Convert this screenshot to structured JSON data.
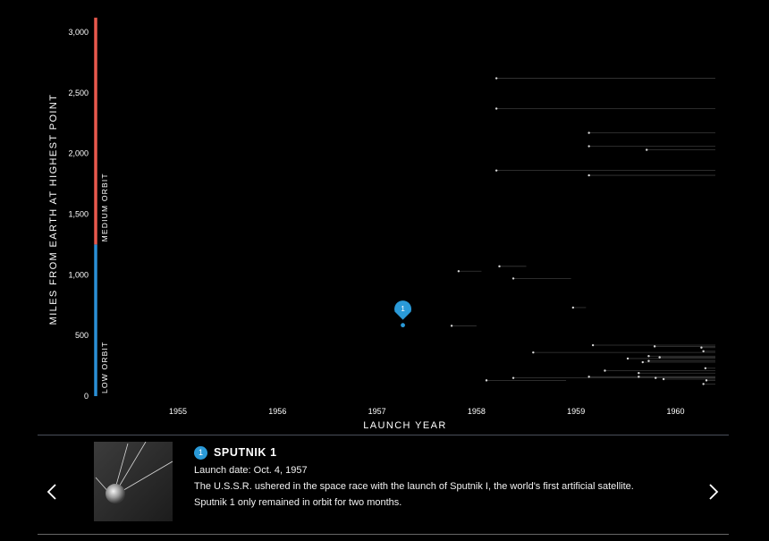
{
  "chart_data": {
    "type": "scatter",
    "xlabel": "LAUNCH YEAR",
    "ylabel": "MILES FROM EARTH AT HIGHEST POINT",
    "x_ticks": [
      "1955",
      "1956",
      "1957",
      "1958",
      "1959",
      "1960"
    ],
    "y_ticks": [
      "0",
      "500",
      "1,000",
      "1,500",
      "2,000",
      "2,500",
      "3,000"
    ],
    "xlim": [
      1954.2,
      1960.4
    ],
    "ylim": [
      0,
      3000
    ],
    "bands": [
      {
        "label": "LOW ORBIT",
        "from": 0,
        "to": 1250,
        "color": "#2a8fd6"
      },
      {
        "label": "MEDIUM ORBIT",
        "from": 1250,
        "to": 3120,
        "color": "#e8594d"
      }
    ],
    "highlight": {
      "label": "1",
      "x": 1957.26,
      "y": 585,
      "color": "#2a9ad8"
    },
    "points": [
      {
        "x": 1957.75,
        "y": 580,
        "end": 1958.0
      },
      {
        "x": 1957.82,
        "y": 1030,
        "end": 1958.05
      },
      {
        "x": 1958.1,
        "y": 130,
        "end": 1958.9
      },
      {
        "x": 1958.2,
        "y": 2620,
        "end": 1960.4
      },
      {
        "x": 1958.2,
        "y": 2370,
        "end": 1960.4
      },
      {
        "x": 1958.2,
        "y": 1860,
        "end": 1960.4
      },
      {
        "x": 1958.23,
        "y": 1070,
        "end": 1958.5
      },
      {
        "x": 1958.37,
        "y": 970,
        "end": 1958.95
      },
      {
        "x": 1958.37,
        "y": 150,
        "end": 1960.4
      },
      {
        "x": 1958.57,
        "y": 360,
        "end": 1960.4
      },
      {
        "x": 1958.97,
        "y": 730,
        "end": 1959.1
      },
      {
        "x": 1959.13,
        "y": 2170,
        "end": 1960.4
      },
      {
        "x": 1959.13,
        "y": 2060,
        "end": 1960.4
      },
      {
        "x": 1959.13,
        "y": 1820,
        "end": 1960.4
      },
      {
        "x": 1959.13,
        "y": 160,
        "end": 1960.4
      },
      {
        "x": 1959.17,
        "y": 420,
        "end": 1960.4
      },
      {
        "x": 1959.29,
        "y": 210,
        "end": 1960.4
      },
      {
        "x": 1959.52,
        "y": 310,
        "end": 1960.4
      },
      {
        "x": 1959.63,
        "y": 190,
        "end": 1960.4
      },
      {
        "x": 1959.63,
        "y": 160,
        "end": 1960.4
      },
      {
        "x": 1959.67,
        "y": 280,
        "end": 1960.4
      },
      {
        "x": 1959.71,
        "y": 2030,
        "end": 1960.4
      },
      {
        "x": 1959.73,
        "y": 330,
        "end": 1960.4
      },
      {
        "x": 1959.73,
        "y": 290,
        "end": 1960.4
      },
      {
        "x": 1959.79,
        "y": 410,
        "end": 1960.4
      },
      {
        "x": 1959.8,
        "y": 150,
        "end": 1960.4
      },
      {
        "x": 1959.84,
        "y": 320,
        "end": 1960.4
      },
      {
        "x": 1959.88,
        "y": 140,
        "end": 1960.4
      },
      {
        "x": 1960.26,
        "y": 400,
        "end": 1960.4
      },
      {
        "x": 1960.28,
        "y": 370,
        "end": 1960.4
      },
      {
        "x": 1960.3,
        "y": 230,
        "end": 1960.4
      },
      {
        "x": 1960.28,
        "y": 100,
        "end": 1960.4
      },
      {
        "x": 1960.31,
        "y": 130,
        "end": 1960.4
      }
    ]
  },
  "card": {
    "badge": "1",
    "title": "SPUTNIK 1",
    "launch_date": "Launch date: Oct. 4, 1957",
    "description_1": "The U.S.S.R. ushered in the space race with the launch of Sputnik I, the world's first artificial satellite.",
    "description_2": "Sputnik 1 only remained in orbit for two months."
  },
  "icons": {
    "prev": "chevron-left-icon",
    "next": "chevron-right-icon",
    "thumb": "sputnik-image"
  }
}
